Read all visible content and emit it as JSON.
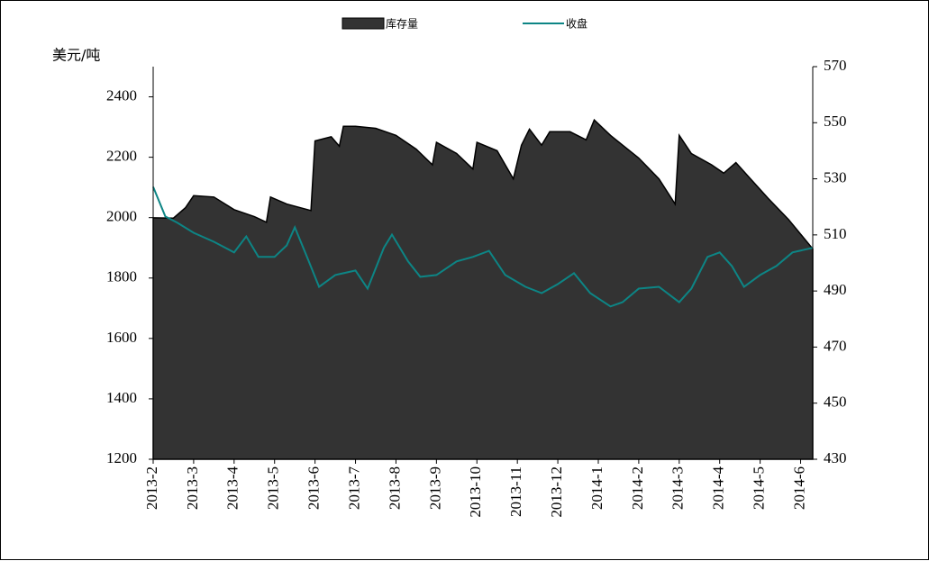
{
  "chart_data": {
    "type": "line",
    "y_label": "美元/吨",
    "xlim": [
      0,
      16.3
    ],
    "xticks": [
      {
        "value": 0,
        "label": "2013-2"
      },
      {
        "value": 1,
        "label": "2013-3"
      },
      {
        "value": 2,
        "label": "2013-4"
      },
      {
        "value": 3,
        "label": "2013-5"
      },
      {
        "value": 4,
        "label": "2013-6"
      },
      {
        "value": 5,
        "label": "2013-7"
      },
      {
        "value": 6,
        "label": "2013-8"
      },
      {
        "value": 7,
        "label": "2013-9"
      },
      {
        "value": 8,
        "label": "2013-10"
      },
      {
        "value": 9,
        "label": "2013-11"
      },
      {
        "value": 10,
        "label": "2013-12"
      },
      {
        "value": 11,
        "label": "2014-1"
      },
      {
        "value": 12,
        "label": "2014-2"
      },
      {
        "value": 13,
        "label": "2014-3"
      },
      {
        "value": 14,
        "label": "2014-4"
      },
      {
        "value": 15,
        "label": "2014-5"
      },
      {
        "value": 16,
        "label": "2014-6"
      }
    ],
    "ylim": [
      1200,
      2500
    ],
    "yticks": [
      1200,
      1400,
      1600,
      1800,
      2000,
      2200,
      2400
    ],
    "y2lim": [
      430,
      570
    ],
    "y2ticks": [
      430,
      450,
      470,
      490,
      510,
      530,
      550,
      570
    ],
    "series": [
      {
        "name": "库存量",
        "type": "area",
        "axis": "y2",
        "color": "#333333",
        "x": [
          0,
          0.5,
          0.8,
          1.0,
          1.5,
          2.0,
          2.5,
          2.8,
          2.9,
          3.3,
          3.9,
          4.0,
          4.4,
          4.6,
          4.7,
          5.0,
          5.5,
          6.0,
          6.5,
          6.9,
          7.0,
          7.5,
          7.9,
          8.0,
          8.5,
          8.9,
          9.1,
          9.3,
          9.6,
          9.8,
          10.3,
          10.7,
          10.9,
          11.3,
          12.0,
          12.5,
          12.9,
          13.0,
          13.3,
          13.8,
          14.1,
          14.4,
          14.7,
          15.2,
          15.7,
          16.3
        ],
        "values": [
          516.1,
          516,
          519.7,
          524,
          523.5,
          519,
          516.5,
          514.5,
          523.5,
          521,
          518.7,
          543.5,
          545,
          541.6,
          548.7,
          548.7,
          548,
          545.5,
          540.6,
          535,
          543,
          539,
          533.5,
          543,
          540,
          530,
          542,
          547.7,
          542,
          546.8,
          546.8,
          543.9,
          551,
          545.5,
          537.4,
          530,
          521,
          545.5,
          539,
          535,
          532,
          535.8,
          531,
          523,
          515.5,
          505
        ]
      },
      {
        "name": "收盘",
        "type": "line",
        "axis": "y",
        "color": "#0d8585",
        "x": [
          0,
          0.3,
          0.6,
          1.0,
          1.5,
          2.0,
          2.3,
          2.6,
          3.0,
          3.3,
          3.5,
          3.8,
          4.1,
          4.5,
          5.0,
          5.3,
          5.7,
          5.9,
          6.3,
          6.6,
          7.0,
          7.5,
          7.9,
          8.3,
          8.7,
          9.2,
          9.6,
          10.0,
          10.4,
          10.8,
          11.3,
          11.6,
          12.0,
          12.5,
          13.0,
          13.3,
          13.7,
          14.0,
          14.3,
          14.6,
          15.0,
          15.4,
          15.8,
          16.3
        ],
        "values": [
          2102,
          2004,
          1983,
          1950,
          1920,
          1885,
          1938,
          1870,
          1870,
          1908,
          1968,
          1870,
          1771,
          1810,
          1825,
          1765,
          1900,
          1944,
          1855,
          1804,
          1810,
          1855,
          1870,
          1890,
          1810,
          1771,
          1750,
          1780,
          1816,
          1750,
          1706,
          1720,
          1765,
          1771,
          1720,
          1765,
          1870,
          1885,
          1840,
          1771,
          1810,
          1840,
          1885,
          1900
        ]
      }
    ]
  }
}
